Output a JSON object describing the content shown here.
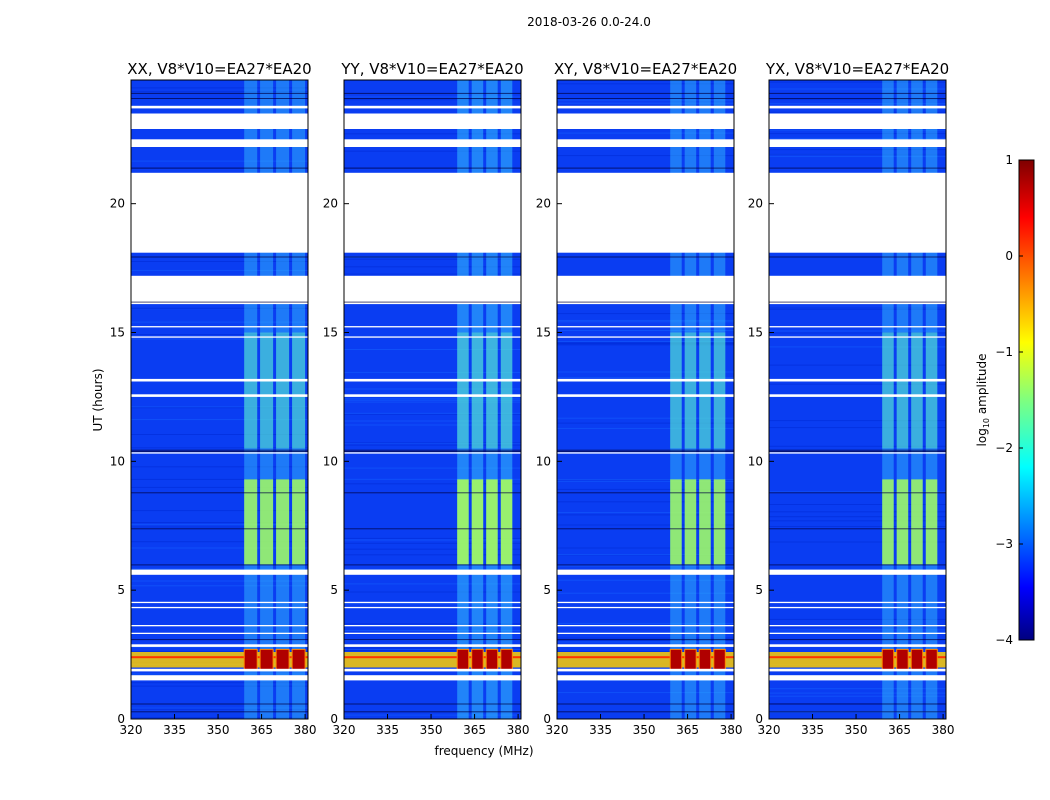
{
  "chart_data": {
    "type": "heatmap",
    "suptitle": "2018-03-26 0.0-24.0",
    "xlabel": "frequency (MHz)",
    "ylabel": "UT (hours)",
    "x_range": [
      320,
      381
    ],
    "x_ticks": [
      320,
      335,
      350,
      365,
      380
    ],
    "y_range": [
      0,
      24.8
    ],
    "y_ticks": [
      0,
      5,
      10,
      15,
      20
    ],
    "panels": [
      {
        "title": "XX, V8*V10=EA27*EA20",
        "rfi_band_mhz": [
          359,
          380
        ],
        "rfi_strength": 0.55
      },
      {
        "title": "YY, V8*V10=EA27*EA20",
        "rfi_band_mhz": [
          359,
          378
        ],
        "rfi_strength": 0.7
      },
      {
        "title": "XY, V8*V10=EA27*EA20",
        "rfi_band_mhz": [
          359,
          378
        ],
        "rfi_strength": 0.55
      },
      {
        "title": "YX, V8*V10=EA27*EA20",
        "rfi_band_mhz": [
          359,
          378
        ],
        "rfi_strength": 0.55
      }
    ],
    "flagged_ut_ranges_hours": [
      [
        18.1,
        21.2
      ],
      [
        16.1,
        17.2
      ],
      [
        22.2,
        22.5
      ],
      [
        22.9,
        23.5
      ],
      [
        23.7,
        23.8
      ],
      [
        5.6,
        5.8
      ],
      [
        12.5,
        12.6
      ],
      [
        14.8,
        14.85
      ],
      [
        15.2,
        15.25
      ],
      [
        1.5,
        1.7
      ],
      [
        1.85,
        1.95
      ],
      [
        2.8,
        2.9
      ],
      [
        10.3,
        10.35
      ],
      [
        13.1,
        13.2
      ],
      [
        3.3,
        3.35
      ],
      [
        3.6,
        3.65
      ],
      [
        4.3,
        4.35
      ],
      [
        4.5,
        4.55
      ]
    ],
    "bright_event_ut_hours": [
      2.0,
      2.6
    ],
    "colorbar": {
      "label": "log10 amplitude",
      "range": [
        -4,
        1
      ],
      "ticks": [
        1,
        0,
        -1,
        -2,
        -3,
        -4
      ],
      "tick_labels": [
        "1",
        "0",
        "−1",
        "−2",
        "−3",
        "−4"
      ]
    }
  }
}
